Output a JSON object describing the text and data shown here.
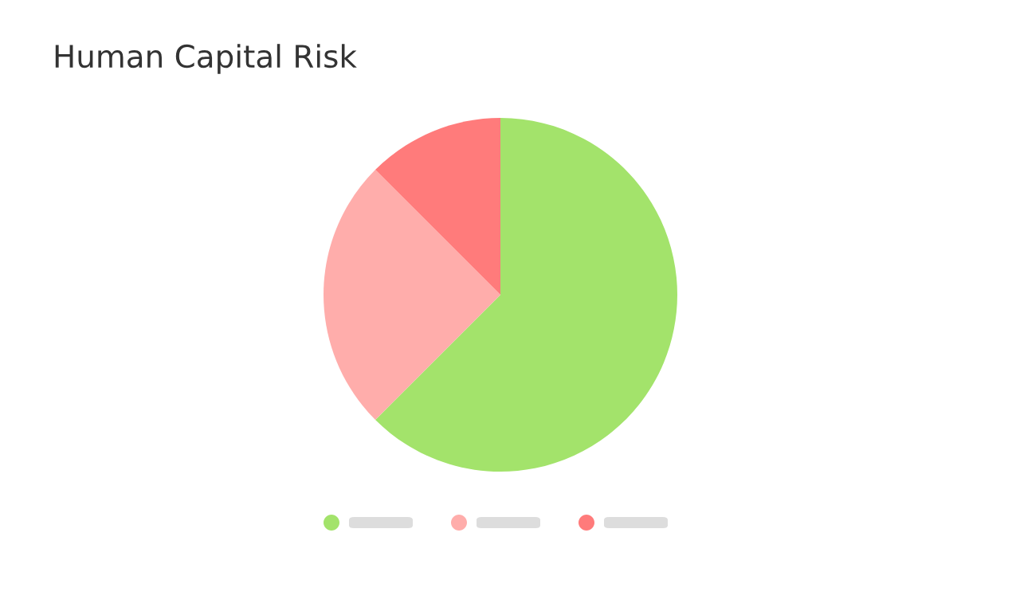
{
  "chart_data": {
    "type": "pie",
    "title": "Human Capital Risk",
    "categories": [
      null,
      null,
      null
    ],
    "values": [
      62.5,
      25,
      12.5
    ],
    "colors": [
      "#a3e36b",
      "#ffadab",
      "#ff7b7b"
    ]
  }
}
